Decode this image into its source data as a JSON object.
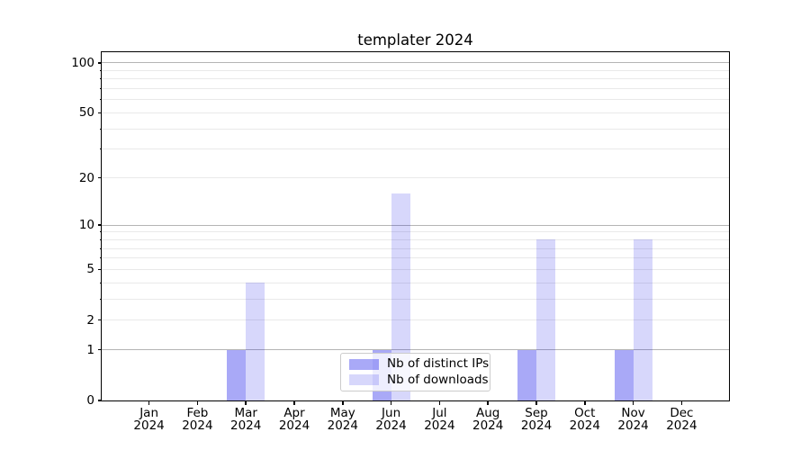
{
  "chart_data": {
    "type": "bar",
    "title": "templater 2024",
    "categories": [
      "Jan",
      "Feb",
      "Mar",
      "Apr",
      "May",
      "Jun",
      "Jul",
      "Aug",
      "Sep",
      "Oct",
      "Nov",
      "Dec"
    ],
    "x_year": "2024",
    "series": [
      {
        "name": "Nb of distinct IPs",
        "values": [
          0,
          0,
          1,
          0,
          0,
          1,
          0,
          0,
          1,
          0,
          1,
          0
        ],
        "color": "#0808e8",
        "opacity": 0.35
      },
      {
        "name": "Nb of downloads",
        "values": [
          0,
          0,
          4,
          0,
          0,
          16,
          0,
          0,
          8,
          0,
          8,
          0
        ],
        "color": "#0808e8",
        "opacity": 0.16
      }
    ],
    "yscale": "log1p",
    "ylim": [
      0,
      116
    ],
    "y_tick_labels": [
      0,
      1,
      2,
      5,
      10,
      20,
      50,
      100
    ],
    "y_major_grid": [
      1,
      10,
      100
    ],
    "y_minor_grid": [
      2,
      3,
      4,
      5,
      6,
      7,
      8,
      9,
      20,
      30,
      40,
      50,
      60,
      70,
      80,
      90
    ],
    "grid": true,
    "legend_position": "lower center",
    "xlabel": "",
    "ylabel": ""
  },
  "colors": {
    "major_grid": "#b4b4b4",
    "minor_grid": "#e9e9e9",
    "spine": "#000000",
    "ips_bar_composite": "#a8a8f7",
    "downloads_bar_composite": "#d8d8f9"
  }
}
